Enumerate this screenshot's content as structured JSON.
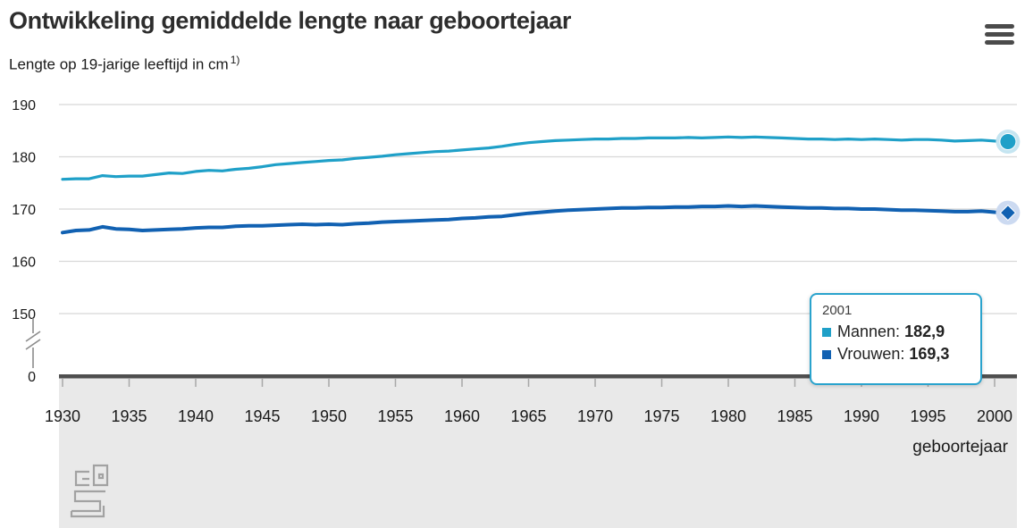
{
  "header": {
    "title": "Ontwikkeling gemiddelde lengte naar geboortejaar",
    "subtitle_text": "Lengte op 19-jarige leeftijd in cm",
    "subtitle_note": "1)"
  },
  "tooltip": {
    "year": "2001",
    "series": [
      {
        "label": "Mannen:",
        "value": "182,9",
        "color": "#1fa0c8"
      },
      {
        "label": "Vrouwen:",
        "value": "169,3",
        "color": "#1161b2"
      }
    ]
  },
  "colors": {
    "mannen": "#1fa0c8",
    "vrouwen": "#1161b2",
    "mannen_halo": "#c5e5f1",
    "vrouwen_halo": "#ccdaf1",
    "gridline": "#d8d8d8",
    "axis": "#4f4f4f",
    "tick": "#a8a8a8",
    "band": "#e9e9e9",
    "tooltip_border": "#2aa3cd",
    "logo": "#a2a2a2"
  },
  "chart_data": {
    "type": "line",
    "title": "Ontwikkeling gemiddelde lengte naar geboortejaar",
    "subtitle": "Lengte op 19-jarige leeftijd in cm 1)",
    "xlabel": "geboortejaar",
    "ylabel": "Lengte op 19-jarige leeftijd in cm",
    "grid": "horizontal",
    "axis_break_at_zero": true,
    "ylim_display": [
      150,
      190
    ],
    "y_ticks": [
      190,
      180,
      170,
      160,
      150,
      0
    ],
    "x_ticks": [
      1930,
      1935,
      1940,
      1945,
      1950,
      1955,
      1960,
      1965,
      1970,
      1975,
      1980,
      1985,
      1990,
      1995,
      2000
    ],
    "x": [
      1930,
      1931,
      1932,
      1933,
      1934,
      1935,
      1936,
      1937,
      1938,
      1939,
      1940,
      1941,
      1942,
      1943,
      1944,
      1945,
      1946,
      1947,
      1948,
      1949,
      1950,
      1951,
      1952,
      1953,
      1954,
      1955,
      1956,
      1957,
      1958,
      1959,
      1960,
      1961,
      1962,
      1963,
      1964,
      1965,
      1966,
      1967,
      1968,
      1969,
      1970,
      1971,
      1972,
      1973,
      1974,
      1975,
      1976,
      1977,
      1978,
      1979,
      1980,
      1981,
      1982,
      1983,
      1984,
      1985,
      1986,
      1987,
      1988,
      1989,
      1990,
      1991,
      1992,
      1993,
      1994,
      1995,
      1996,
      1997,
      1998,
      1999,
      2000,
      2001
    ],
    "series": [
      {
        "name": "Mannen",
        "color": "#1fa0c8",
        "marker": "circle",
        "values": [
          175.7,
          175.8,
          175.8,
          176.4,
          176.2,
          176.3,
          176.3,
          176.6,
          176.9,
          176.8,
          177.2,
          177.4,
          177.3,
          177.6,
          177.8,
          178.1,
          178.5,
          178.7,
          178.9,
          179.1,
          179.3,
          179.4,
          179.7,
          179.9,
          180.1,
          180.4,
          180.6,
          180.8,
          181.0,
          181.1,
          181.3,
          181.5,
          181.7,
          182.0,
          182.4,
          182.7,
          182.9,
          183.1,
          183.2,
          183.3,
          183.4,
          183.4,
          183.5,
          183.5,
          183.6,
          183.6,
          183.6,
          183.7,
          183.6,
          183.7,
          183.8,
          183.7,
          183.8,
          183.7,
          183.6,
          183.5,
          183.4,
          183.4,
          183.3,
          183.4,
          183.3,
          183.4,
          183.3,
          183.2,
          183.3,
          183.3,
          183.2,
          183.0,
          183.1,
          183.2,
          183.0,
          182.9
        ]
      },
      {
        "name": "Vrouwen",
        "color": "#1161b2",
        "marker": "diamond",
        "values": [
          165.5,
          165.9,
          166.0,
          166.6,
          166.2,
          166.1,
          165.9,
          166.0,
          166.1,
          166.2,
          166.4,
          166.5,
          166.5,
          166.7,
          166.8,
          166.8,
          166.9,
          167.0,
          167.1,
          167.0,
          167.1,
          167.0,
          167.2,
          167.3,
          167.5,
          167.6,
          167.7,
          167.8,
          167.9,
          168.0,
          168.2,
          168.3,
          168.5,
          168.6,
          168.9,
          169.2,
          169.4,
          169.6,
          169.8,
          169.9,
          170.0,
          170.1,
          170.2,
          170.2,
          170.3,
          170.3,
          170.4,
          170.4,
          170.5,
          170.5,
          170.6,
          170.5,
          170.6,
          170.5,
          170.4,
          170.3,
          170.2,
          170.2,
          170.1,
          170.1,
          170.0,
          170.0,
          169.9,
          169.8,
          169.8,
          169.7,
          169.6,
          169.5,
          169.5,
          169.6,
          169.4,
          169.3
        ]
      }
    ],
    "highlighted_point": {
      "x": 2001,
      "Mannen": 182.9,
      "Vrouwen": 169.3
    },
    "legend_position": "tooltip-only"
  }
}
